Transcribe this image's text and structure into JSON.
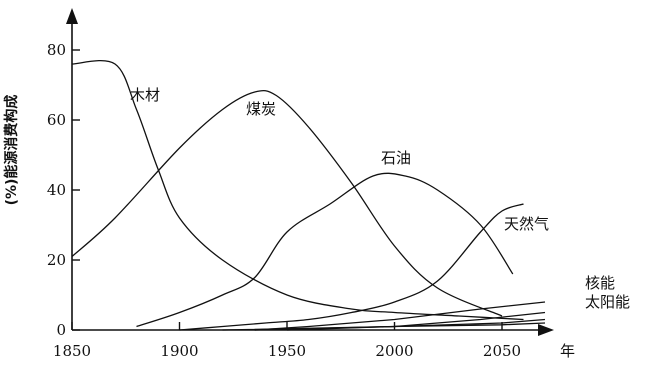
{
  "chart_data": {
    "type": "line",
    "ylabel": "(%)能源消费构成",
    "xlabel": "年",
    "x_ticks": [
      1850,
      1900,
      1950,
      2000,
      2050
    ],
    "y_ticks": [
      0,
      20,
      40,
      60,
      80
    ],
    "xlim": [
      1850,
      2060
    ],
    "ylim": [
      0,
      80
    ],
    "grid": false,
    "series": [
      {
        "name": "木材",
        "x": [
          1850,
          1870,
          1880,
          1890,
          1900,
          1920,
          1950,
          1980,
          2000,
          2030,
          2060
        ],
        "y": [
          76,
          76,
          63,
          46,
          32,
          20,
          10,
          6,
          5,
          4,
          3
        ]
      },
      {
        "name": "煤炭",
        "x": [
          1850,
          1870,
          1900,
          1920,
          1935,
          1945,
          1960,
          1980,
          2000,
          2020,
          2050
        ],
        "y": [
          21,
          32,
          52,
          63,
          68,
          67,
          58,
          42,
          24,
          12,
          4
        ]
      },
      {
        "name": "石油",
        "x": [
          1880,
          1900,
          1920,
          1935,
          1950,
          1970,
          1990,
          2005,
          2020,
          2040,
          2055
        ],
        "y": [
          1,
          5,
          10,
          15,
          28,
          36,
          44,
          44,
          40,
          30,
          16
        ]
      },
      {
        "name": "天然气",
        "x": [
          1900,
          1920,
          1940,
          1960,
          1980,
          2000,
          2020,
          2040,
          2050,
          2060
        ],
        "y": [
          0,
          1,
          2,
          3,
          5,
          8,
          14,
          28,
          34,
          36
        ]
      },
      {
        "name": "核能",
        "x": [
          1935,
          1960,
          2000,
          2040,
          2070
        ],
        "y": [
          0,
          1,
          3,
          6,
          8
        ]
      },
      {
        "name": "太阳能",
        "x": [
          1950,
          2000,
          2040,
          2070
        ],
        "y": [
          0,
          1,
          3,
          5
        ]
      }
    ],
    "extra_lines": [
      {
        "x": [
          1920,
          2000,
          2050,
          2070
        ],
        "y": [
          0,
          1,
          2,
          3
        ]
      },
      {
        "x": [
          1935,
          2000,
          2050,
          2070
        ],
        "y": [
          0,
          1,
          1.5,
          2
        ]
      }
    ],
    "series_labels": {
      "木材": "木材",
      "煤炭": "煤炭",
      "石油": "石油",
      "天然气": "天然气",
      "核能": "核能",
      "太阳能": "太阳能"
    }
  }
}
